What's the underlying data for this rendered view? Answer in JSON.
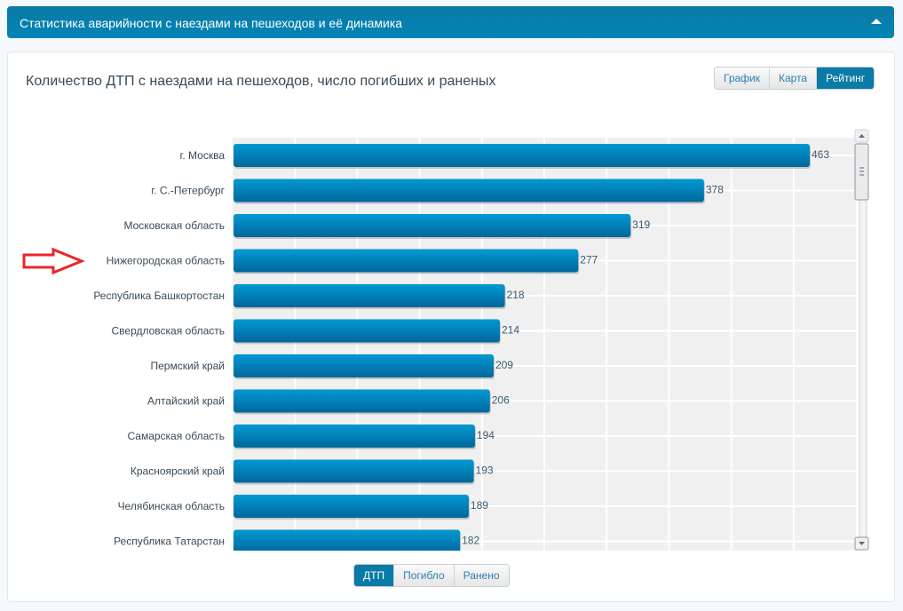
{
  "header": {
    "title": "Статистика аварийности с наездами на пешеходов и её динамика",
    "collapse_icon": "caret-up-icon"
  },
  "panel": {
    "title": "Количество ДТП с наездами на пешеходов, число погибших и раненых",
    "view_tabs": [
      {
        "label": "График",
        "active": false
      },
      {
        "label": "Карта",
        "active": false
      },
      {
        "label": "Рейтинг",
        "active": true
      }
    ],
    "metric_tabs": [
      {
        "label": "ДТП",
        "active": true
      },
      {
        "label": "Погибло",
        "active": false
      },
      {
        "label": "Ранено",
        "active": false
      }
    ],
    "annotation_icon": "red-arrow-right-icon",
    "highlighted_category": "Нижегородская область"
  },
  "colors": {
    "header": "#0a7aa6",
    "bar_top": "#0399d3",
    "bar_bottom": "#00679b",
    "annotation": "#e8262b",
    "plot_bg": "#f0f0f0"
  },
  "chart_data": {
    "type": "bar",
    "orientation": "horizontal",
    "title": "Количество ДТП с наездами на пешеходов, число погибших и раненых",
    "xlabel": "",
    "ylabel": "",
    "xlim": [
      0,
      500
    ],
    "grid": true,
    "grid_step": 50,
    "categories": [
      "г. Москва",
      "г. С.-Петербург",
      "Московская область",
      "Нижегородская область",
      "Республика Башкортостан",
      "Свердловская область",
      "Пермский край",
      "Алтайский край",
      "Самарская область",
      "Красноярский край",
      "Челябинская область",
      "Республика Татарстан"
    ],
    "values": [
      463,
      378,
      319,
      277,
      218,
      214,
      209,
      206,
      194,
      193,
      189,
      182
    ],
    "value_labels": [
      "463",
      "378",
      "319",
      "277",
      "218",
      "214",
      "209",
      "206",
      "194",
      "193",
      "189",
      "182"
    ]
  }
}
